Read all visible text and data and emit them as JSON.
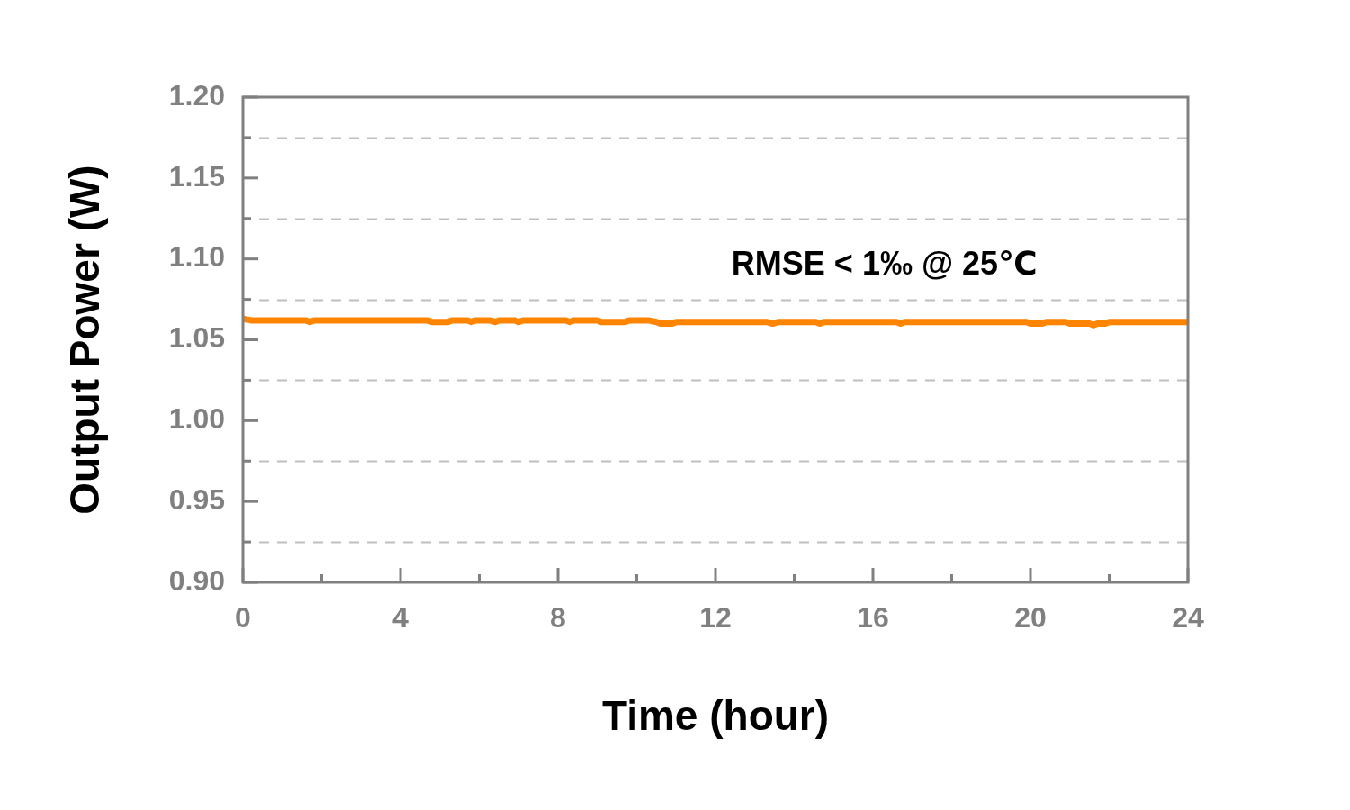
{
  "chart_data": {
    "type": "line",
    "xlabel": "Time (hour)",
    "ylabel": "Output Power (W)",
    "annotations": [
      "RMSE < 1‰ @ 25℃"
    ],
    "xlim": [
      0,
      24
    ],
    "xticks": [
      0,
      {
        "value": 2,
        "label": null
      },
      4,
      {
        "value": 6,
        "label": null
      },
      8,
      {
        "value": 10,
        "label": null
      },
      12,
      {
        "value": 14,
        "label": null
      },
      16,
      {
        "value": 18,
        "label": null
      },
      20,
      {
        "value": 22,
        "label": null
      },
      24
    ],
    "ylim": [
      0.9,
      1.2
    ],
    "yticks": [
      {
        "value": 0.9,
        "label": "0.90"
      },
      {
        "value": 0.925,
        "label": null
      },
      0.95,
      {
        "value": 0.975,
        "label": null
      },
      {
        "value": 1.0,
        "label": "1.00"
      },
      {
        "value": 1.025,
        "label": null
      },
      1.05,
      {
        "value": 1.075,
        "label": null
      },
      {
        "value": 1.1,
        "label": "1.10"
      },
      {
        "value": 1.125,
        "label": null
      },
      1.15,
      {
        "value": 1.175,
        "label": null
      },
      {
        "value": 1.2,
        "label": "1.20"
      }
    ],
    "grid": "y",
    "legend": false,
    "marker": "none",
    "x": [
      0,
      0.2,
      1.6,
      1.7,
      1.8,
      4.7,
      4.8,
      5.2,
      5.3,
      5.7,
      5.8,
      5.9,
      6.3,
      6.4,
      6.5,
      6.9,
      7.0,
      7.1,
      8.2,
      8.3,
      8.4,
      9.0,
      9.1,
      9.7,
      9.8,
      10.3,
      10.5,
      10.6,
      10.9,
      11.0,
      11.6,
      13.3,
      13.45,
      13.6,
      14.55,
      14.65,
      14.75,
      16.6,
      16.7,
      16.8,
      19.9,
      20.0,
      20.3,
      20.4,
      20.9,
      21.0,
      21.3,
      21.5,
      21.6,
      21.7,
      21.9,
      22.0,
      24
    ],
    "series": [
      {
        "color": "#ff8400",
        "values": [
          1.063,
          1.062,
          1.062,
          1.061,
          1.062,
          1.062,
          1.061,
          1.061,
          1.062,
          1.062,
          1.061,
          1.062,
          1.062,
          1.061,
          1.062,
          1.062,
          1.061,
          1.062,
          1.062,
          1.061,
          1.062,
          1.062,
          1.061,
          1.061,
          1.062,
          1.062,
          1.061,
          1.06,
          1.06,
          1.061,
          1.061,
          1.061,
          1.06,
          1.061,
          1.061,
          1.06,
          1.061,
          1.061,
          1.06,
          1.061,
          1.061,
          1.06,
          1.06,
          1.061,
          1.061,
          1.06,
          1.06,
          1.06,
          1.059,
          1.06,
          1.06,
          1.061,
          1.061
        ]
      }
    ]
  }
}
